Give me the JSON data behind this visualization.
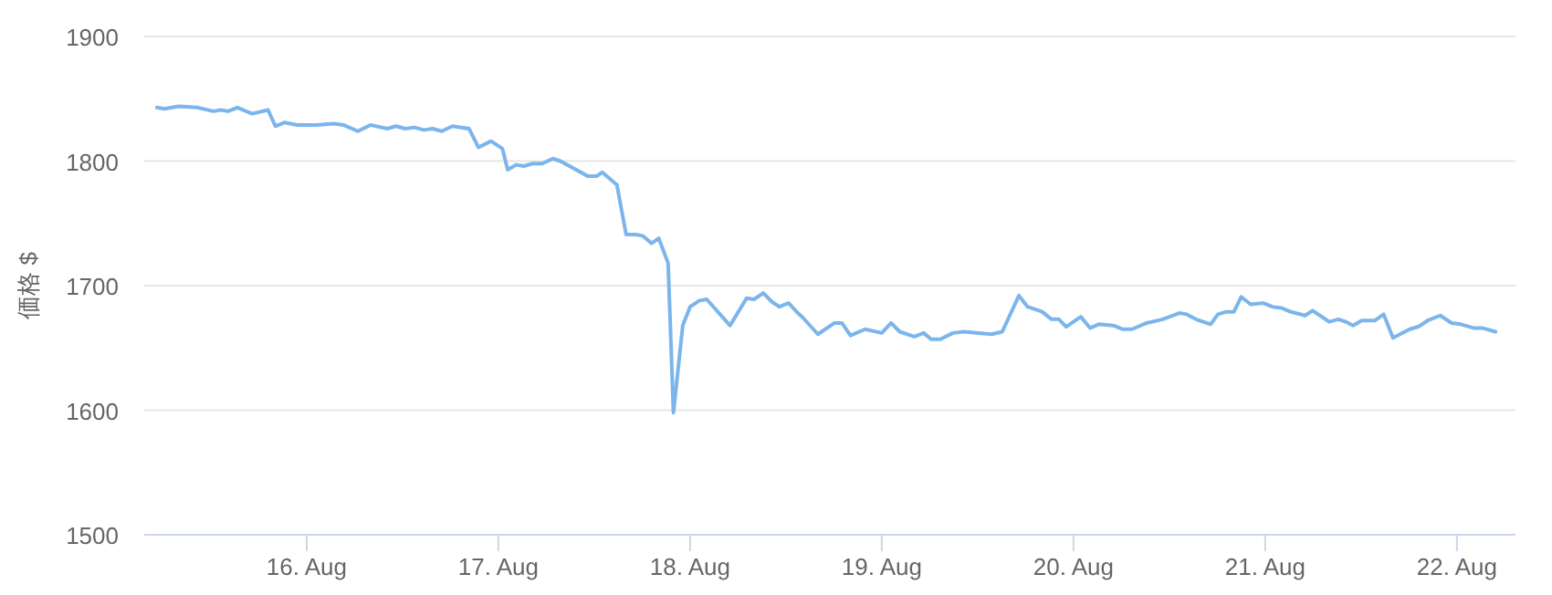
{
  "chart_data": {
    "type": "line",
    "ylabel": "価格 $",
    "grid": "y",
    "xlim": [
      "--08-15T03:40",
      "--08-22T07:20"
    ],
    "xticks": [
      {
        "value": "--08-16T00:00",
        "label": "16. Aug"
      },
      {
        "value": "--08-17T00:00",
        "label": "17. Aug"
      },
      {
        "value": "--08-18T00:00",
        "label": "18. Aug"
      },
      {
        "value": "--08-19T00:00",
        "label": "19. Aug"
      },
      {
        "value": "--08-20T00:00",
        "label": "20. Aug"
      },
      {
        "value": "--08-21T00:00",
        "label": "21. Aug"
      },
      {
        "value": "--08-22T00:00",
        "label": "22. Aug"
      }
    ],
    "ylim": [
      1500,
      1900
    ],
    "yticks": [
      1500,
      1600,
      1700,
      1800,
      1900
    ],
    "series": [
      {
        "color": "#7cb5ec",
        "x": [
          "--08-15T05:15",
          "--08-15T06:10",
          "--08-15T08:00",
          "--08-15T10:15",
          "--08-15T12:20",
          "--08-15T13:15",
          "--08-15T14:10",
          "--08-15T15:20",
          "--08-15T17:10",
          "--08-15T19:10",
          "--08-15T20:05",
          "--08-15T21:15",
          "--08-15T22:50",
          "--08-16T01:10",
          "--08-16T03:25",
          "--08-16T04:35",
          "--08-16T06:25",
          "--08-16T08:00",
          "--08-16T10:05",
          "--08-16T11:10",
          "--08-16T12:20",
          "--08-16T13:30",
          "--08-16T14:40",
          "--08-16T15:45",
          "--08-16T16:55",
          "--08-16T18:15",
          "--08-16T20:20",
          "--08-16T21:30",
          "--08-16T23:05",
          "--08-17T00:30",
          "--08-17T01:10",
          "--08-17T02:15",
          "--08-17T03:10",
          "--08-17T04:20",
          "--08-17T05:30",
          "--08-17T06:50",
          "--08-17T07:45",
          "--08-17T09:10",
          "--08-17T11:10",
          "--08-17T12:20",
          "--08-17T13:00",
          "--08-17T14:50",
          "--08-17T16:00",
          "--08-17T17:10",
          "--08-17T18:05",
          "--08-17T19:10",
          "--08-17T20:05",
          "--08-17T21:15",
          "--08-17T21:55",
          "--08-17T23:05",
          "--08-18T00:00",
          "--08-18T01:10",
          "--08-18T02:05",
          "--08-18T05:00",
          "--08-18T07:05",
          "--08-18T08:00",
          "--08-18T09:10",
          "--08-18T10:15",
          "--08-18T11:10",
          "--08-18T12:20",
          "--08-18T13:30",
          "--08-18T14:10",
          "--08-18T16:00",
          "--08-18T18:05",
          "--08-18T19:00",
          "--08-18T20:05",
          "--08-18T21:55",
          "--08-19T00:00",
          "--08-19T01:10",
          "--08-19T02:15",
          "--08-19T04:05",
          "--08-19T05:15",
          "--08-19T06:10",
          "--08-19T07:20",
          "--08-19T08:55",
          "--08-19T10:15",
          "--08-19T13:45",
          "--08-19T15:05",
          "--08-19T17:10",
          "--08-19T18:15",
          "--08-19T20:05",
          "--08-19T21:15",
          "--08-19T22:10",
          "--08-19T23:05",
          "--08-20T00:55",
          "--08-20T02:05",
          "--08-20T03:10",
          "--08-20T05:00",
          "--08-20T06:10",
          "--08-20T07:20",
          "--08-20T09:10",
          "--08-20T11:10",
          "--08-20T13:15",
          "--08-20T14:10",
          "--08-20T15:20",
          "--08-20T17:10",
          "--08-20T18:05",
          "--08-20T19:10",
          "--08-20T20:05",
          "--08-20T21:00",
          "--08-20T22:10",
          "--08-20T23:45",
          "--08-21T00:55",
          "--08-21T02:05",
          "--08-21T03:10",
          "--08-21T05:00",
          "--08-21T05:55",
          "--08-21T07:20",
          "--08-21T08:00",
          "--08-21T09:10",
          "--08-21T10:05",
          "--08-21T11:00",
          "--08-21T12:05",
          "--08-21T13:45",
          "--08-21T14:50",
          "--08-21T16:00",
          "--08-21T18:05",
          "--08-21T19:10",
          "--08-21T20:20",
          "--08-21T21:55",
          "--08-21T23:20",
          "--08-22T00:30",
          "--08-22T02:05",
          "--08-22T03:10",
          "--08-22T04:50"
        ],
        "values": [
          1843,
          1842,
          1844,
          1843,
          1840,
          1841,
          1840,
          1843,
          1838,
          1841,
          1828,
          1831,
          1829,
          1829,
          1830,
          1829,
          1824,
          1829,
          1826,
          1828,
          1826,
          1827,
          1825,
          1826,
          1824,
          1828,
          1826,
          1811,
          1816,
          1810,
          1793,
          1797,
          1796,
          1798,
          1798,
          1802,
          1800,
          1795,
          1788,
          1788,
          1791,
          1781,
          1741,
          1741,
          1740,
          1734,
          1738,
          1718,
          1598,
          1668,
          1683,
          1688,
          1689,
          1668,
          1690,
          1689,
          1694,
          1687,
          1683,
          1686,
          1678,
          1674,
          1661,
          1670,
          1670,
          1660,
          1665,
          1662,
          1670,
          1663,
          1659,
          1662,
          1657,
          1657,
          1662,
          1663,
          1661,
          1663,
          1692,
          1683,
          1679,
          1673,
          1673,
          1667,
          1675,
          1666,
          1669,
          1668,
          1665,
          1665,
          1670,
          1673,
          1678,
          1677,
          1673,
          1669,
          1677,
          1679,
          1679,
          1691,
          1685,
          1686,
          1683,
          1682,
          1679,
          1676,
          1680,
          1674,
          1671,
          1673,
          1671,
          1668,
          1672,
          1672,
          1677,
          1658,
          1665,
          1667,
          1672,
          1676,
          1670,
          1669,
          1666,
          1666,
          1663
        ]
      }
    ]
  }
}
